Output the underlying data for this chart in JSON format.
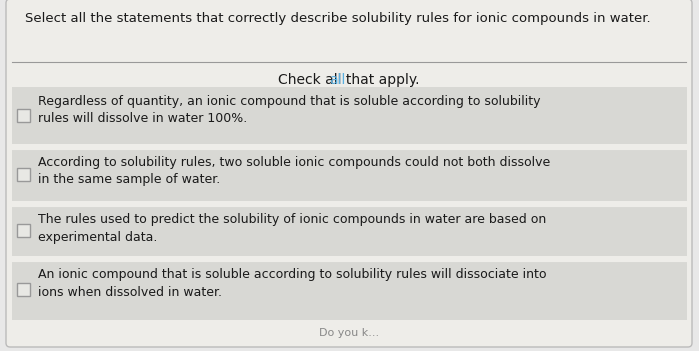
{
  "title": "Select all the statements that correctly describe solubility rules for ionic compounds in water.",
  "subtitle_part1": "Check ",
  "subtitle_colored": "all",
  "subtitle_part2": " that apply.",
  "subtitle_color": "#5aafe0",
  "bg_color": "#d8d8d8",
  "card_bg": "#d0d0d0",
  "outer_bg": "#e8e8e8",
  "white_bg": "#f5f4f2",
  "title_fontsize": 9.5,
  "subtitle_fontsize": 10,
  "item_fontsize": 9.0,
  "options": [
    "Regardless of quantity, an ionic compound that is soluble according to solubility\nrules will dissolve in water 100%.",
    "According to solubility rules, two soluble ionic compounds could not both dissolve\nin the same sample of water.",
    "The rules used to predict the solubility of ionic compounds in water are based on\nexperimental data.",
    "An ionic compound that is soluble according to solubility rules will dissociate into\nions when dissolved in water."
  ],
  "checkbox_border": "#999999",
  "separator_color": "#aaaaaa",
  "title_text_color": "#1a1a1a",
  "item_text_color": "#1a1a1a",
  "title_area_bg": "#eeede9",
  "option_area_bg": "#d8d8d4"
}
